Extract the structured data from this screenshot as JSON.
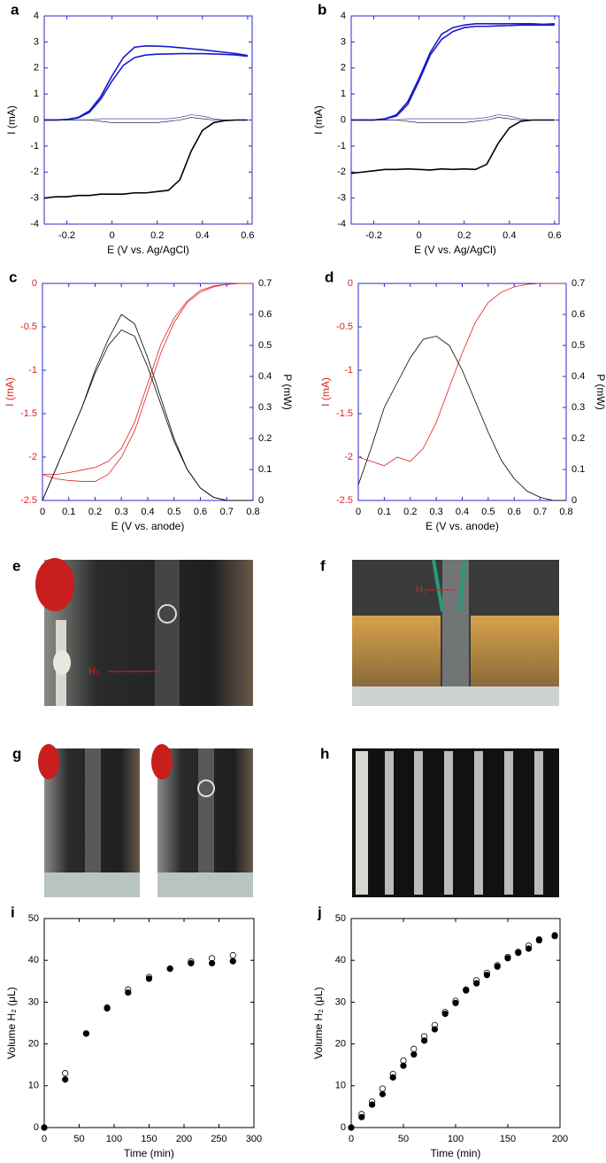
{
  "chart_data": [
    {
      "type": "line",
      "panel_label": "a",
      "xlabel": "E (V vs. Ag/AgCl)",
      "ylabel": "I (mA)",
      "frame_color": "#2a2ad0",
      "xlim": [
        -0.3,
        0.62
      ],
      "xticks": [
        -0.2,
        0,
        0.2,
        0.4,
        0.6
      ],
      "ylim": [
        -4,
        4
      ],
      "yticks": [
        -4,
        -3,
        -2,
        -1,
        0,
        1,
        2,
        3,
        4
      ],
      "x": [
        -0.3,
        -0.25,
        -0.2,
        -0.15,
        -0.1,
        -0.05,
        0,
        0.05,
        0.1,
        0.15,
        0.2,
        0.25,
        0.3,
        0.35,
        0.4,
        0.45,
        0.5,
        0.55,
        0.6
      ],
      "series": [
        {
          "color": "#1a1acc",
          "line_width": 1.6,
          "values": [
            0,
            0,
            0.02,
            0.1,
            0.35,
            0.9,
            1.7,
            2.4,
            2.8,
            2.85,
            2.84,
            2.82,
            2.78,
            2.74,
            2.7,
            2.65,
            2.6,
            2.55,
            2.48
          ]
        },
        {
          "color": "#1a1acc",
          "line_width": 1.6,
          "values": [
            0,
            0,
            0.02,
            0.08,
            0.3,
            0.8,
            1.5,
            2.1,
            2.4,
            2.5,
            2.53,
            2.54,
            2.55,
            2.55,
            2.55,
            2.54,
            2.52,
            2.5,
            2.45
          ]
        },
        {
          "color": "#000000",
          "line_width": 1.6,
          "values": [
            -3,
            -2.95,
            -2.95,
            -2.9,
            -2.9,
            -2.85,
            -2.85,
            -2.85,
            -2.8,
            -2.8,
            -2.75,
            -2.7,
            -2.3,
            -1.2,
            -0.4,
            -0.1,
            -0.02,
            0,
            0
          ]
        },
        {
          "color": "#1a1acc",
          "line_width": 0.6,
          "values": [
            0,
            0,
            0,
            0,
            0,
            0.05,
            0.05,
            0.05,
            0.05,
            0.05,
            0.05,
            0.05,
            0.1,
            0.2,
            0.15,
            0.05,
            0,
            0,
            0
          ]
        },
        {
          "color": "#000000",
          "line_width": 0.6,
          "values": [
            0,
            0,
            0,
            0,
            0,
            -0.05,
            -0.1,
            -0.1,
            -0.1,
            -0.1,
            -0.1,
            -0.05,
            0,
            0.1,
            0.05,
            0,
            0,
            0,
            0
          ]
        }
      ]
    },
    {
      "type": "line",
      "panel_label": "b",
      "xlabel": "E (V vs. Ag/AgCl)",
      "ylabel": "I (mA)",
      "frame_color": "#2a2ad0",
      "xlim": [
        -0.3,
        0.62
      ],
      "xticks": [
        -0.2,
        0,
        0.2,
        0.4,
        0.6
      ],
      "ylim": [
        -4,
        4
      ],
      "yticks": [
        -4,
        -3,
        -2,
        -1,
        0,
        1,
        2,
        3,
        4
      ],
      "x": [
        -0.3,
        -0.25,
        -0.2,
        -0.15,
        -0.1,
        -0.05,
        0,
        0.05,
        0.1,
        0.15,
        0.2,
        0.25,
        0.3,
        0.35,
        0.4,
        0.45,
        0.5,
        0.55,
        0.6
      ],
      "series": [
        {
          "color": "#1a1acc",
          "line_width": 1.6,
          "values": [
            0,
            0,
            0,
            0.05,
            0.2,
            0.7,
            1.6,
            2.6,
            3.3,
            3.55,
            3.65,
            3.7,
            3.7,
            3.7,
            3.7,
            3.7,
            3.7,
            3.68,
            3.7
          ]
        },
        {
          "color": "#1a1acc",
          "line_width": 1.6,
          "values": [
            0,
            0,
            0,
            0.04,
            0.15,
            0.6,
            1.5,
            2.5,
            3.1,
            3.4,
            3.55,
            3.6,
            3.6,
            3.62,
            3.63,
            3.65,
            3.65,
            3.65,
            3.65
          ]
        },
        {
          "color": "#000000",
          "line_width": 1.6,
          "values": [
            -2.05,
            -2,
            -1.95,
            -1.9,
            -1.9,
            -1.88,
            -1.9,
            -1.92,
            -1.88,
            -1.9,
            -1.88,
            -1.9,
            -1.7,
            -0.9,
            -0.3,
            -0.05,
            0,
            0,
            0
          ]
        },
        {
          "color": "#1a1acc",
          "line_width": 0.6,
          "values": [
            0,
            0,
            0,
            0,
            0,
            0.05,
            0.05,
            0.05,
            0.05,
            0.05,
            0.05,
            0.05,
            0.1,
            0.2,
            0.15,
            0.05,
            0,
            0,
            0
          ]
        },
        {
          "color": "#000000",
          "line_width": 0.6,
          "values": [
            0,
            0,
            0,
            0,
            0,
            -0.05,
            -0.1,
            -0.1,
            -0.1,
            -0.1,
            -0.1,
            -0.05,
            0,
            0.1,
            0.05,
            0,
            0,
            0,
            0
          ]
        }
      ]
    },
    {
      "type": "line",
      "panel_label": "c",
      "xlabel": "E (V vs. anode)",
      "ylabel": "I (mA)",
      "ylabel_color": "#e02020",
      "y2label": "P (mW)",
      "frame_color": "#2a2ad0",
      "xlim": [
        0,
        0.8
      ],
      "xticks": [
        0,
        0.1,
        0.2,
        0.3,
        0.4,
        0.5,
        0.6,
        0.7,
        0.8
      ],
      "ylim": [
        -2.5,
        0
      ],
      "yticks": [
        -2.5,
        -2,
        -1.5,
        -1,
        -0.5,
        0
      ],
      "y2lim": [
        0,
        0.7
      ],
      "y2ticks": [
        0,
        0.1,
        0.2,
        0.3,
        0.4,
        0.5,
        0.6,
        0.7
      ],
      "x": [
        0,
        0.05,
        0.1,
        0.15,
        0.2,
        0.25,
        0.3,
        0.35,
        0.4,
        0.45,
        0.5,
        0.55,
        0.6,
        0.65,
        0.7,
        0.75,
        0.8
      ],
      "series": [
        {
          "color": "#e02020",
          "line_width": 0.8,
          "values": [
            -2.2,
            -2.2,
            -2.18,
            -2.15,
            -2.12,
            -2.05,
            -1.9,
            -1.6,
            -1.15,
            -0.7,
            -0.4,
            -0.2,
            -0.08,
            -0.03,
            -0.01,
            0,
            0
          ]
        },
        {
          "color": "#e02020",
          "line_width": 0.8,
          "values": [
            -2.2,
            -2.25,
            -2.27,
            -2.28,
            -2.28,
            -2.2,
            -2,
            -1.7,
            -1.25,
            -0.8,
            -0.45,
            -0.22,
            -0.1,
            -0.04,
            -0.01,
            0,
            0
          ]
        },
        {
          "color": "#000000",
          "line_width": 0.8,
          "axis": "y2",
          "values": [
            0,
            0.1,
            0.2,
            0.3,
            0.42,
            0.52,
            0.6,
            0.57,
            0.46,
            0.33,
            0.2,
            0.1,
            0.04,
            0.01,
            0,
            0,
            0
          ]
        },
        {
          "color": "#000000",
          "line_width": 0.8,
          "axis": "y2",
          "values": [
            0,
            0.1,
            0.2,
            0.3,
            0.41,
            0.5,
            0.55,
            0.53,
            0.43,
            0.31,
            0.19,
            0.1,
            0.04,
            0.01,
            0,
            0,
            0
          ]
        }
      ]
    },
    {
      "type": "line",
      "panel_label": "d",
      "xlabel": "E (V vs. anode)",
      "ylabel": "I (mA)",
      "ylabel_color": "#e02020",
      "y2label": "P (mW)",
      "frame_color": "#2a2ad0",
      "xlim": [
        0,
        0.8
      ],
      "xticks": [
        0,
        0.1,
        0.2,
        0.3,
        0.4,
        0.5,
        0.6,
        0.7,
        0.8
      ],
      "ylim": [
        -2.5,
        0
      ],
      "yticks": [
        -2.5,
        -2,
        -1.5,
        -1,
        -0.5,
        0
      ],
      "y2lim": [
        0,
        0.7
      ],
      "y2ticks": [
        0,
        0.1,
        0.2,
        0.3,
        0.4,
        0.5,
        0.6,
        0.7
      ],
      "x": [
        0,
        0.05,
        0.1,
        0.15,
        0.2,
        0.25,
        0.3,
        0.35,
        0.4,
        0.45,
        0.5,
        0.55,
        0.6,
        0.65,
        0.7,
        0.75,
        0.8
      ],
      "series": [
        {
          "color": "#e02020",
          "line_width": 0.8,
          "values": [
            -2,
            -2.05,
            -2.1,
            -2,
            -2.05,
            -1.9,
            -1.6,
            -1.2,
            -0.8,
            -0.45,
            -0.22,
            -0.1,
            -0.04,
            -0.01,
            0,
            0,
            0
          ]
        },
        {
          "color": "#000000",
          "line_width": 0.8,
          "axis": "y2",
          "values": [
            0.05,
            0.17,
            0.3,
            0.38,
            0.46,
            0.52,
            0.53,
            0.5,
            0.42,
            0.32,
            0.22,
            0.13,
            0.07,
            0.03,
            0.01,
            0,
            0
          ]
        }
      ]
    },
    {
      "type": "scatter",
      "panel_label": "i",
      "xlabel": "Time (min)",
      "ylabel": "Volume H₂ (μL)",
      "frame_color": "#000000",
      "xlim": [
        0,
        300
      ],
      "xticks": [
        0,
        50,
        100,
        150,
        200,
        250,
        300
      ],
      "ylim": [
        0,
        50
      ],
      "yticks": [
        0,
        10,
        20,
        30,
        40,
        50
      ],
      "x": [
        0,
        30,
        60,
        90,
        120,
        150,
        180,
        210,
        240,
        270
      ],
      "series": [
        {
          "color": "#000000",
          "marker": "open",
          "values": [
            0,
            13,
            22.5,
            28.7,
            33,
            36,
            38,
            39.7,
            40.5,
            41.2
          ]
        },
        {
          "color": "#000000",
          "marker": "filled",
          "values": [
            0,
            11.5,
            22.5,
            28.5,
            32.3,
            35.6,
            38,
            39.3,
            39.3,
            39.8
          ]
        }
      ]
    },
    {
      "type": "scatter",
      "panel_label": "j",
      "xlabel": "Time (min)",
      "ylabel": "Volume H₂ (μL)",
      "frame_color": "#000000",
      "xlim": [
        0,
        200
      ],
      "xticks": [
        0,
        50,
        100,
        150,
        200
      ],
      "ylim": [
        0,
        50
      ],
      "yticks": [
        0,
        10,
        20,
        30,
        40,
        50
      ],
      "x": [
        0,
        10,
        20,
        30,
        40,
        50,
        60,
        70,
        80,
        90,
        100,
        110,
        120,
        130,
        140,
        150,
        160,
        170,
        180,
        195
      ],
      "series": [
        {
          "color": "#000000",
          "marker": "open",
          "values": [
            0,
            3.2,
            6.2,
            9.3,
            12.8,
            16,
            18.8,
            21.8,
            24.5,
            27.6,
            30.3,
            33,
            35.2,
            37,
            38.8,
            40.8,
            42,
            43.5,
            45,
            46
          ]
        },
        {
          "color": "#000000",
          "marker": "filled",
          "values": [
            0,
            2.5,
            5.5,
            8,
            12,
            14.8,
            17.5,
            20.8,
            23.5,
            27.2,
            29.8,
            32.8,
            34.5,
            36.5,
            38.5,
            40.5,
            41.8,
            42.8,
            44.8,
            45.8
          ]
        }
      ]
    }
  ],
  "photos": [
    {
      "panel_label": "e",
      "annotation": "H₂"
    },
    {
      "panel_label": "f",
      "annotation": "H₂"
    },
    {
      "panel_label": "g"
    },
    {
      "panel_label": "h"
    }
  ]
}
